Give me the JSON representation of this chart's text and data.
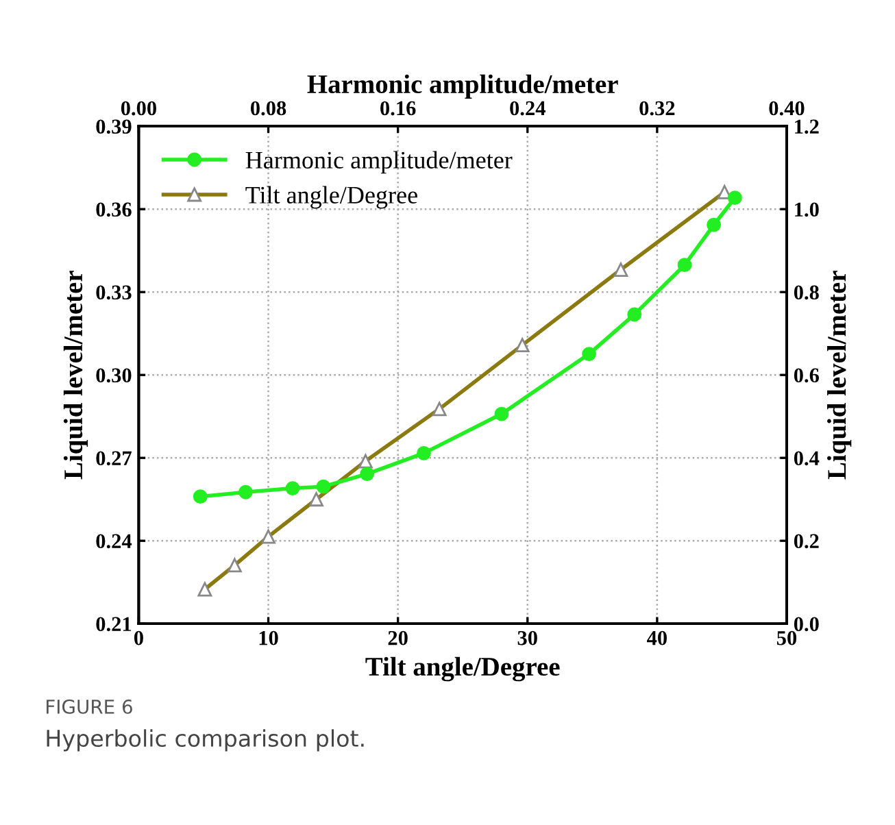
{
  "chart_data": {
    "type": "line",
    "xlabel": "Tilt angle/Degree",
    "ylabel": "Liquid level/meter",
    "y2label": "Liquid level/meter",
    "x2label": "Harmonic amplitude/meter",
    "xlim": [
      0,
      50
    ],
    "xticks": [
      0,
      10,
      20,
      30,
      40,
      50
    ],
    "ylim": [
      0.21,
      0.39
    ],
    "yticks": [
      0.21,
      0.24,
      0.27,
      {
        "value": 0.3,
        "label": "0.30"
      },
      0.33,
      0.36,
      0.39
    ],
    "x2lim": [
      0.0,
      0.4
    ],
    "x2ticks": [
      {
        "value": 0.0,
        "label": "0.00"
      },
      {
        "value": 0.08,
        "label": "0.08"
      },
      {
        "value": 0.16,
        "label": "0.16"
      },
      {
        "value": 0.24,
        "label": "0.24"
      },
      {
        "value": 0.32,
        "label": "0.32"
      },
      {
        "value": 0.4,
        "label": "0.40"
      }
    ],
    "y2lim": [
      0.0,
      1.2
    ],
    "y2ticks": [
      {
        "value": 0.0,
        "label": "0.0"
      },
      {
        "value": 0.2,
        "label": "0.2"
      },
      {
        "value": 0.4,
        "label": "0.4"
      },
      {
        "value": 0.6,
        "label": "0.6"
      },
      {
        "value": 0.8,
        "label": "0.8"
      },
      {
        "value": 1.0,
        "label": "1.0"
      },
      {
        "value": 1.2,
        "label": "1.2"
      }
    ],
    "grid": true,
    "legend": "top left",
    "series": [
      {
        "name": "Harmonic amplitude/meter",
        "color": "#22ee22",
        "axis": "x2",
        "marker": "circle",
        "x": [
          0.038,
          0.066,
          0.095,
          0.114,
          0.141,
          0.176,
          0.224,
          0.278,
          0.306,
          0.337,
          0.355,
          0.368
        ],
        "values": [
          0.256,
          0.2576,
          0.259,
          0.2596,
          0.2642,
          0.2717,
          0.2859,
          0.3076,
          0.3219,
          0.3398,
          0.3543,
          0.3641
        ]
      },
      {
        "name": "Tilt angle/Degree",
        "color": "#8b7a10",
        "axis": "y2",
        "marker": "triangle",
        "x": [
          5.1,
          7.4,
          10.0,
          13.7,
          17.5,
          23.2,
          29.6,
          37.2,
          45.2
        ],
        "values": [
          0.083,
          0.141,
          0.21,
          0.3,
          0.392,
          0.518,
          0.672,
          0.854,
          1.041
        ]
      }
    ],
    "annotations": [
      "FIGURE 6",
      "Hyperbolic comparison plot."
    ]
  }
}
